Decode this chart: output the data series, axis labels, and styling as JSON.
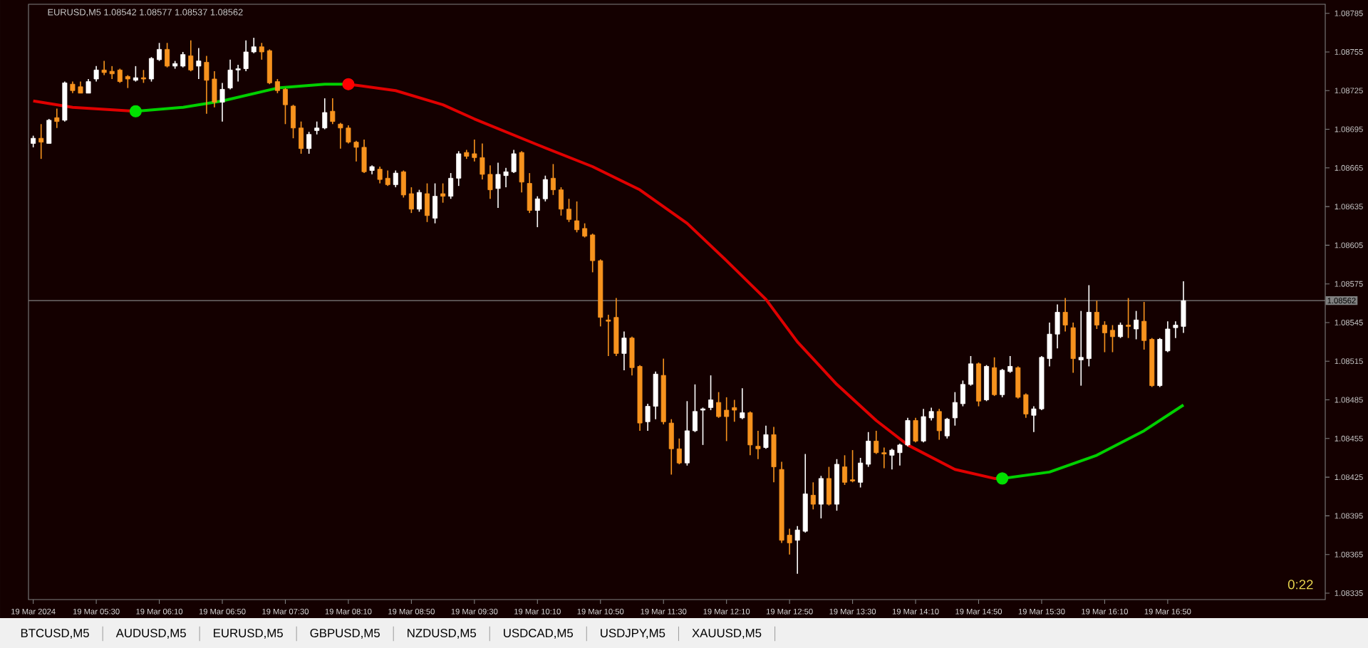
{
  "chart_data": {
    "type": "candlestick",
    "title": "EURUSD,M5 1.08542 1.08577 1.08537 1.08562",
    "annotations": [
      "0:22",
      "BTCUSD,M5",
      "AUDUSD,M5",
      "EURUSD,M5",
      "GBPUSD,M5",
      "NZDUSD,M5",
      "USDCAD,M5",
      "USDJPY,M5",
      "XAUUSD,M5"
    ],
    "xlim": [
      "2024-03-19T04:47",
      "2024-03-19T18:30"
    ],
    "xticks": [
      {
        "value": "2024-03-19T04:50",
        "label": "19 Mar 2024"
      },
      {
        "value": "2024-03-19T05:30",
        "label": "19 Mar 05:30"
      },
      {
        "value": "2024-03-19T06:10",
        "label": "19 Mar 06:10"
      },
      {
        "value": "2024-03-19T06:50",
        "label": "19 Mar 06:50"
      },
      {
        "value": "2024-03-19T07:30",
        "label": "19 Mar 07:30"
      },
      {
        "value": "2024-03-19T08:10",
        "label": "19 Mar 08:10"
      },
      {
        "value": "2024-03-19T08:50",
        "label": "19 Mar 08:50"
      },
      {
        "value": "2024-03-19T09:30",
        "label": "19 Mar 09:30"
      },
      {
        "value": "2024-03-19T10:10",
        "label": "19 Mar 10:10"
      },
      {
        "value": "2024-03-19T10:50",
        "label": "19 Mar 10:50"
      },
      {
        "value": "2024-03-19T11:30",
        "label": "19 Mar 11:30"
      },
      {
        "value": "2024-03-19T12:10",
        "label": "19 Mar 12:10"
      },
      {
        "value": "2024-03-19T12:50",
        "label": "19 Mar 12:50"
      },
      {
        "value": "2024-03-19T13:30",
        "label": "19 Mar 13:30"
      },
      {
        "value": "2024-03-19T14:10",
        "label": "19 Mar 14:10"
      },
      {
        "value": "2024-03-19T14:50",
        "label": "19 Mar 14:50"
      },
      {
        "value": "2024-03-19T15:30",
        "label": "19 Mar 15:30"
      },
      {
        "value": "2024-03-19T16:10",
        "label": "19 Mar 16:10"
      },
      {
        "value": "2024-03-19T16:50",
        "label": "19 Mar 16:50"
      }
    ],
    "ylim": [
      1.0833,
      1.08792
    ],
    "yticks": [
      1.08335,
      1.08365,
      1.08395,
      1.08425,
      1.08455,
      1.08485,
      1.08515,
      1.08545,
      1.08575,
      1.08605,
      1.08635,
      1.08665,
      1.08695,
      1.08725,
      1.08755,
      1.08785
    ],
    "ref_lines": [
      {
        "axis": "y",
        "value": 1.08562,
        "label": "1.08562",
        "color": "#808080"
      }
    ],
    "series": [
      {
        "type": "line",
        "color": "#e00000",
        "x": [
          "2024-03-19T04:50",
          "2024-03-19T05:15",
          "2024-03-19T05:55"
        ],
        "values": [
          1.08717,
          1.08712,
          1.08709
        ]
      },
      {
        "type": "line",
        "color": "#00d000",
        "x": [
          "2024-03-19T05:55",
          "2024-03-19T06:25",
          "2024-03-19T06:50",
          "2024-03-19T07:25",
          "2024-03-19T07:55",
          "2024-03-19T08:10"
        ],
        "values": [
          1.08709,
          1.08712,
          1.08717,
          1.08727,
          1.0873,
          1.0873
        ]
      },
      {
        "type": "line",
        "color": "#e00000",
        "x": [
          "2024-03-19T08:10",
          "2024-03-19T08:40",
          "2024-03-19T09:10",
          "2024-03-19T09:30",
          "2024-03-19T10:10",
          "2024-03-19T10:45",
          "2024-03-19T11:15",
          "2024-03-19T11:45",
          "2024-03-19T12:10",
          "2024-03-19T12:35",
          "2024-03-19T12:55",
          "2024-03-19T13:20",
          "2024-03-19T13:45",
          "2024-03-19T14:05",
          "2024-03-19T14:35",
          "2024-03-19T15:00",
          "2024-03-19T15:05"
        ],
        "values": [
          1.0873,
          1.08725,
          1.08714,
          1.08703,
          1.08683,
          1.08666,
          1.08648,
          1.08622,
          1.08593,
          1.08563,
          1.0853,
          1.08497,
          1.08469,
          1.0845,
          1.08431,
          1.08424,
          1.08424
        ]
      },
      {
        "type": "line",
        "color": "#00d000",
        "x": [
          "2024-03-19T15:05",
          "2024-03-19T15:35",
          "2024-03-19T16:05",
          "2024-03-19T16:35",
          "2024-03-19T17:00"
        ],
        "values": [
          1.08424,
          1.08429,
          1.08442,
          1.08461,
          1.08481
        ]
      },
      {
        "type": "scatter",
        "marker": "circle",
        "x": [
          "2024-03-19T05:55",
          "2024-03-19T08:10",
          "2024-03-19T15:05"
        ],
        "values": [
          1.08709,
          1.0873,
          1.08424
        ],
        "colors": [
          "#00e000",
          "#ff0000",
          "#00e000"
        ]
      },
      {
        "type": "candlestick",
        "color": "#ffffff",
        "x": [
          "2024-03-19T04:50",
          "2024-03-19T05:00",
          "2024-03-19T05:10",
          "2024-03-19T05:25",
          "2024-03-19T05:30",
          "2024-03-19T05:55",
          "2024-03-19T06:05",
          "2024-03-19T06:10",
          "2024-03-19T06:20",
          "2024-03-19T06:25",
          "2024-03-19T06:35",
          "2024-03-19T06:50",
          "2024-03-19T06:55",
          "2024-03-19T07:00",
          "2024-03-19T07:05",
          "2024-03-19T07:10",
          "2024-03-19T07:45",
          "2024-03-19T07:50",
          "2024-03-19T07:55",
          "2024-03-19T08:25",
          "2024-03-19T08:40",
          "2024-03-19T08:55",
          "2024-03-19T09:05",
          "2024-03-19T09:15",
          "2024-03-19T09:20",
          "2024-03-19T09:45",
          "2024-03-19T09:50",
          "2024-03-19T09:55",
          "2024-03-19T10:10",
          "2024-03-19T10:15",
          "2024-03-19T11:05",
          "2024-03-19T11:20",
          "2024-03-19T11:25",
          "2024-03-19T11:45",
          "2024-03-19T11:50",
          "2024-03-19T11:55",
          "2024-03-19T12:00",
          "2024-03-19T12:20",
          "2024-03-19T12:35",
          "2024-03-19T12:55",
          "2024-03-19T13:00",
          "2024-03-19T13:10",
          "2024-03-19T13:20",
          "2024-03-19T13:35",
          "2024-03-19T13:40",
          "2024-03-19T13:55",
          "2024-03-19T14:00",
          "2024-03-19T14:05",
          "2024-03-19T14:15",
          "2024-03-19T14:20",
          "2024-03-19T14:30",
          "2024-03-19T14:35",
          "2024-03-19T14:40",
          "2024-03-19T14:45",
          "2024-03-19T14:55",
          "2024-03-19T15:05",
          "2024-03-19T15:10",
          "2024-03-19T15:25",
          "2024-03-19T15:30",
          "2024-03-19T15:35",
          "2024-03-19T15:40",
          "2024-03-19T15:55",
          "2024-03-19T16:00",
          "2024-03-19T16:20",
          "2024-03-19T16:30",
          "2024-03-19T16:45",
          "2024-03-19T16:50",
          "2024-03-19T16:55",
          "2024-03-19T17:00"
        ],
        "ohlc": [
          [
            1.08684,
            1.0869,
            1.08681,
            1.08688
          ],
          [
            1.08684,
            1.08703,
            1.08684,
            1.08702
          ],
          [
            1.08702,
            1.08732,
            1.08701,
            1.08731
          ],
          [
            1.08723,
            1.08734,
            1.08723,
            1.08732
          ],
          [
            1.08734,
            1.08744,
            1.08732,
            1.08741
          ],
          [
            1.08733,
            1.08744,
            1.08732,
            1.08735
          ],
          [
            1.08734,
            1.08751,
            1.08732,
            1.0875
          ],
          [
            1.08749,
            1.08762,
            1.08748,
            1.08757
          ],
          [
            1.08744,
            1.08748,
            1.08742,
            1.08746
          ],
          [
            1.08744,
            1.08755,
            1.08743,
            1.08753
          ],
          [
            1.08744,
            1.08758,
            1.08734,
            1.08748
          ],
          [
            1.08716,
            1.08731,
            1.08701,
            1.08726
          ],
          [
            1.08727,
            1.08749,
            1.08726,
            1.08741
          ],
          [
            1.08741,
            1.08745,
            1.08732,
            1.08742
          ],
          [
            1.08742,
            1.08764,
            1.0874,
            1.08755
          ],
          [
            1.08755,
            1.08766,
            1.08754,
            1.08759
          ],
          [
            1.0868,
            1.08693,
            1.08676,
            1.08691
          ],
          [
            1.08694,
            1.08701,
            1.08691,
            1.08696
          ],
          [
            1.08696,
            1.08719,
            1.08695,
            1.08708
          ],
          [
            1.08663,
            1.08667,
            1.0866,
            1.08666
          ],
          [
            1.08652,
            1.08663,
            1.0865,
            1.08661
          ],
          [
            1.08633,
            1.08648,
            1.08631,
            1.08646
          ],
          [
            1.08626,
            1.08653,
            1.08622,
            1.08643
          ],
          [
            1.08643,
            1.08661,
            1.08641,
            1.08657
          ],
          [
            1.08657,
            1.08678,
            1.08651,
            1.08676
          ],
          [
            1.08649,
            1.08669,
            1.08634,
            1.0866
          ],
          [
            1.08659,
            1.08665,
            1.0865,
            1.08662
          ],
          [
            1.08662,
            1.08679,
            1.08661,
            1.08676
          ],
          [
            1.08632,
            1.08643,
            1.08619,
            1.08641
          ],
          [
            1.08641,
            1.08659,
            1.08639,
            1.08656
          ],
          [
            1.08521,
            1.08538,
            1.08508,
            1.08533
          ],
          [
            1.08468,
            1.08482,
            1.08461,
            1.0848
          ],
          [
            1.0848,
            1.08507,
            1.0847,
            1.08505
          ],
          [
            1.08436,
            1.08484,
            1.08434,
            1.08461
          ],
          [
            1.08461,
            1.08497,
            1.0846,
            1.08476
          ],
          [
            1.08477,
            1.08479,
            1.0845,
            1.08478
          ],
          [
            1.08479,
            1.08504,
            1.08477,
            1.08485
          ],
          [
            1.08471,
            1.08494,
            1.0847,
            1.08475
          ],
          [
            1.08448,
            1.08465,
            1.08447,
            1.08458
          ],
          [
            1.08376,
            1.08387,
            1.0835,
            1.08384
          ],
          [
            1.08383,
            1.08443,
            1.08382,
            1.08412
          ],
          [
            1.08404,
            1.08426,
            1.08393,
            1.08424
          ],
          [
            1.08404,
            1.08439,
            1.08399,
            1.08435
          ],
          [
            1.08421,
            1.0844,
            1.08417,
            1.08436
          ],
          [
            1.08435,
            1.0846,
            1.08433,
            1.08453
          ],
          [
            1.08442,
            1.08447,
            1.08431,
            1.08446
          ],
          [
            1.08444,
            1.08451,
            1.08434,
            1.0845
          ],
          [
            1.0845,
            1.08471,
            1.08449,
            1.08469
          ],
          [
            1.08453,
            1.08478,
            1.08452,
            1.08472
          ],
          [
            1.08471,
            1.08479,
            1.08469,
            1.08476
          ],
          [
            1.08457,
            1.08471,
            1.08455,
            1.0847
          ],
          [
            1.08471,
            1.08491,
            1.08465,
            1.08483
          ],
          [
            1.08482,
            1.085,
            1.0848,
            1.08497
          ],
          [
            1.08497,
            1.08519,
            1.08496,
            1.08513
          ],
          [
            1.08485,
            1.08512,
            1.08484,
            1.08511
          ],
          [
            1.08489,
            1.08509,
            1.08487,
            1.08508
          ],
          [
            1.08507,
            1.08519,
            1.08506,
            1.08511
          ],
          [
            1.08473,
            1.0848,
            1.0846,
            1.08478
          ],
          [
            1.08478,
            1.08519,
            1.08477,
            1.08518
          ],
          [
            1.08517,
            1.08545,
            1.08511,
            1.08536
          ],
          [
            1.08536,
            1.08559,
            1.08525,
            1.08553
          ],
          [
            1.08516,
            1.08554,
            1.08496,
            1.08518
          ],
          [
            1.08517,
            1.08574,
            1.08511,
            1.08553
          ],
          [
            1.08534,
            1.08545,
            1.08533,
            1.08543
          ],
          [
            1.0854,
            1.08554,
            1.08532,
            1.08547
          ],
          [
            1.08496,
            1.08533,
            1.08495,
            1.08532
          ],
          [
            1.08523,
            1.08546,
            1.08522,
            1.0854
          ],
          [
            1.08541,
            1.08546,
            1.08533,
            1.08543
          ],
          [
            1.08542,
            1.08577,
            1.08537,
            1.08562
          ]
        ]
      },
      {
        "type": "candlestick",
        "color": "#f7931e",
        "x": [
          "2024-03-19T04:55",
          "2024-03-19T05:05",
          "2024-03-19T05:15",
          "2024-03-19T05:20",
          "2024-03-19T05:35",
          "2024-03-19T05:40",
          "2024-03-19T05:45",
          "2024-03-19T05:50",
          "2024-03-19T06:00",
          "2024-03-19T06:15",
          "2024-03-19T06:30",
          "2024-03-19T06:40",
          "2024-03-19T06:45",
          "2024-03-19T07:15",
          "2024-03-19T07:20",
          "2024-03-19T07:25",
          "2024-03-19T07:30",
          "2024-03-19T07:35",
          "2024-03-19T07:40",
          "2024-03-19T08:00",
          "2024-03-19T08:05",
          "2024-03-19T08:10",
          "2024-03-19T08:15",
          "2024-03-19T08:20",
          "2024-03-19T08:30",
          "2024-03-19T08:35",
          "2024-03-19T08:45",
          "2024-03-19T08:50",
          "2024-03-19T09:00",
          "2024-03-19T09:10",
          "2024-03-19T09:25",
          "2024-03-19T09:30",
          "2024-03-19T09:35",
          "2024-03-19T09:40",
          "2024-03-19T10:00",
          "2024-03-19T10:05",
          "2024-03-19T10:20",
          "2024-03-19T10:25",
          "2024-03-19T10:30",
          "2024-03-19T10:35",
          "2024-03-19T10:40",
          "2024-03-19T10:45",
          "2024-03-19T10:50",
          "2024-03-19T10:55",
          "2024-03-19T11:00",
          "2024-03-19T11:10",
          "2024-03-19T11:15",
          "2024-03-19T11:30",
          "2024-03-19T11:35",
          "2024-03-19T11:40",
          "2024-03-19T12:05",
          "2024-03-19T12:10",
          "2024-03-19T12:15",
          "2024-03-19T12:25",
          "2024-03-19T12:30",
          "2024-03-19T12:40",
          "2024-03-19T12:45",
          "2024-03-19T12:50",
          "2024-03-19T13:05",
          "2024-03-19T13:15",
          "2024-03-19T13:25",
          "2024-03-19T13:30",
          "2024-03-19T13:45",
          "2024-03-19T13:50",
          "2024-03-19T14:10",
          "2024-03-19T14:25",
          "2024-03-19T14:50",
          "2024-03-19T15:00",
          "2024-03-19T15:15",
          "2024-03-19T15:20",
          "2024-03-19T15:45",
          "2024-03-19T15:50",
          "2024-03-19T16:05",
          "2024-03-19T16:10",
          "2024-03-19T16:15",
          "2024-03-19T16:25",
          "2024-03-19T16:35",
          "2024-03-19T16:40"
        ],
        "ohlc": [
          [
            1.08688,
            1.08699,
            1.08672,
            1.08685
          ],
          [
            1.08704,
            1.08711,
            1.08696,
            1.08701
          ],
          [
            1.0873,
            1.08732,
            1.08723,
            1.08725
          ],
          [
            1.08728,
            1.08732,
            1.08723,
            1.08723
          ],
          [
            1.08741,
            1.08748,
            1.08737,
            1.08739
          ],
          [
            1.0874,
            1.08744,
            1.08734,
            1.08738
          ],
          [
            1.08741,
            1.08742,
            1.08731,
            1.08732
          ],
          [
            1.08736,
            1.08737,
            1.08727,
            1.08734
          ],
          [
            1.08735,
            1.08741,
            1.08731,
            1.08734
          ],
          [
            1.08757,
            1.08762,
            1.08743,
            1.08744
          ],
          [
            1.08752,
            1.08764,
            1.0874,
            1.08741
          ],
          [
            1.08747,
            1.08752,
            1.08707,
            1.08733
          ],
          [
            1.08734,
            1.0874,
            1.08712,
            1.08716
          ],
          [
            1.08759,
            1.08762,
            1.08749,
            1.08755
          ],
          [
            1.08756,
            1.08757,
            1.0873,
            1.08731
          ],
          [
            1.08732,
            1.08734,
            1.08723,
            1.08725
          ],
          [
            1.08726,
            1.08727,
            1.08699,
            1.08714
          ],
          [
            1.08713,
            1.08714,
            1.08688,
            1.08696
          ],
          [
            1.08696,
            1.08701,
            1.08676,
            1.0868
          ],
          [
            1.08709,
            1.08719,
            1.08699,
            1.08701
          ],
          [
            1.08699,
            1.087,
            1.0868,
            1.08696
          ],
          [
            1.08696,
            1.08698,
            1.08684,
            1.08685
          ],
          [
            1.08685,
            1.08686,
            1.0867,
            1.08681
          ],
          [
            1.08681,
            1.08687,
            1.08661,
            1.08662
          ],
          [
            1.08664,
            1.08666,
            1.08653,
            1.08656
          ],
          [
            1.08657,
            1.08663,
            1.08651,
            1.08652
          ],
          [
            1.08662,
            1.08663,
            1.08642,
            1.08644
          ],
          [
            1.08645,
            1.0865,
            1.0863,
            1.08633
          ],
          [
            1.08645,
            1.08653,
            1.08623,
            1.08628
          ],
          [
            1.08645,
            1.08653,
            1.08638,
            1.08643
          ],
          [
            1.08677,
            1.08679,
            1.08672,
            1.08674
          ],
          [
            1.08676,
            1.08687,
            1.0867,
            1.08673
          ],
          [
            1.08673,
            1.08684,
            1.08656,
            1.0866
          ],
          [
            1.0866,
            1.08667,
            1.08641,
            1.08648
          ],
          [
            1.08677,
            1.08678,
            1.08646,
            1.08654
          ],
          [
            1.08653,
            1.08661,
            1.0863,
            1.08632
          ],
          [
            1.08657,
            1.08668,
            1.08644,
            1.08648
          ],
          [
            1.08648,
            1.0865,
            1.08628,
            1.08633
          ],
          [
            1.08633,
            1.08641,
            1.08623,
            1.08625
          ],
          [
            1.08624,
            1.08639,
            1.08615,
            1.08617
          ],
          [
            1.08618,
            1.08622,
            1.08611,
            1.08612
          ],
          [
            1.08613,
            1.08614,
            1.08584,
            1.08593
          ],
          [
            1.08593,
            1.08594,
            1.08542,
            1.08549
          ],
          [
            1.08547,
            1.08551,
            1.08519,
            1.08546
          ],
          [
            1.08549,
            1.08564,
            1.08519,
            1.08521
          ],
          [
            1.08533,
            1.08534,
            1.08504,
            1.0851
          ],
          [
            1.08511,
            1.08512,
            1.08461,
            1.08467
          ],
          [
            1.08504,
            1.08517,
            1.08466,
            1.08468
          ],
          [
            1.08467,
            1.0847,
            1.08427,
            1.08447
          ],
          [
            1.08447,
            1.08455,
            1.08435,
            1.08436
          ],
          [
            1.08483,
            1.08491,
            1.08471,
            1.08472
          ],
          [
            1.08477,
            1.08487,
            1.08453,
            1.08472
          ],
          [
            1.08479,
            1.08485,
            1.08468,
            1.08477
          ],
          [
            1.08475,
            1.08476,
            1.08442,
            1.0845
          ],
          [
            1.08449,
            1.08461,
            1.08439,
            1.08447
          ],
          [
            1.08458,
            1.08464,
            1.08421,
            1.08433
          ],
          [
            1.08431,
            1.08437,
            1.08374,
            1.08376
          ],
          [
            1.0838,
            1.08385,
            1.08365,
            1.08374
          ],
          [
            1.08411,
            1.08421,
            1.084,
            1.08404
          ],
          [
            1.08424,
            1.08433,
            1.08403,
            1.08404
          ],
          [
            1.08433,
            1.08442,
            1.08419,
            1.08421
          ],
          [
            1.08423,
            1.08446,
            1.08421,
            1.08422
          ],
          [
            1.08453,
            1.08461,
            1.08443,
            1.08444
          ],
          [
            1.08444,
            1.08448,
            1.08432,
            1.08443
          ],
          [
            1.08469,
            1.08471,
            1.08452,
            1.08453
          ],
          [
            1.08476,
            1.08478,
            1.08454,
            1.08461
          ],
          [
            1.08513,
            1.08514,
            1.0848,
            1.08484
          ],
          [
            1.0851,
            1.08518,
            1.08488,
            1.08489
          ],
          [
            1.0851,
            1.08511,
            1.08486,
            1.08487
          ],
          [
            1.08489,
            1.0849,
            1.08471,
            1.08474
          ],
          [
            1.08553,
            1.08564,
            1.08538,
            1.08543
          ],
          [
            1.08541,
            1.08545,
            1.08506,
            1.08517
          ],
          [
            1.08553,
            1.08562,
            1.0854,
            1.08543
          ],
          [
            1.08543,
            1.08546,
            1.08522,
            1.08537
          ],
          [
            1.08539,
            1.08543,
            1.08522,
            1.08534
          ],
          [
            1.08543,
            1.08564,
            1.08533,
            1.08542
          ],
          [
            1.08546,
            1.08561,
            1.08524,
            1.08531
          ],
          [
            1.08532,
            1.08533,
            1.08495,
            1.08496
          ]
        ]
      }
    ]
  }
}
